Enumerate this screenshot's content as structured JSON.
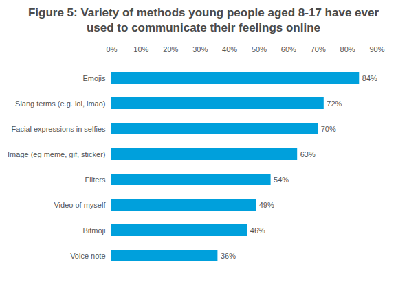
{
  "chart_data": {
    "type": "bar",
    "title": "Figure 5: Variety of methods young people aged 8-17 have ever used to communicate their feelings online",
    "orientation": "horizontal",
    "categories": [
      "Emojis",
      "Slang terms (e.g. lol, lmao)",
      "Facial expressions in selfies",
      "Image (eg meme, gif, sticker)",
      "Filters",
      "Video of myself",
      "Bitmoji",
      "Voice note"
    ],
    "values": [
      84,
      72,
      70,
      63,
      54,
      49,
      46,
      36
    ],
    "value_labels": [
      "84%",
      "72%",
      "70%",
      "63%",
      "54%",
      "49%",
      "46%",
      "36%"
    ],
    "color": "#00a0dc",
    "xlim": [
      0,
      90
    ],
    "xticks": [
      {
        "value": 0,
        "label": "0%"
      },
      {
        "value": 10,
        "label": "10%"
      },
      {
        "value": 20,
        "label": "20%"
      },
      {
        "value": 30,
        "label": "30%"
      },
      {
        "value": 40,
        "label": "40%"
      },
      {
        "value": 50,
        "label": "50%"
      },
      {
        "value": 60,
        "label": "60%"
      },
      {
        "value": 70,
        "label": "70%"
      },
      {
        "value": 80,
        "label": "80%"
      },
      {
        "value": 90,
        "label": "90%"
      }
    ],
    "grid": false,
    "data_labels": true
  }
}
